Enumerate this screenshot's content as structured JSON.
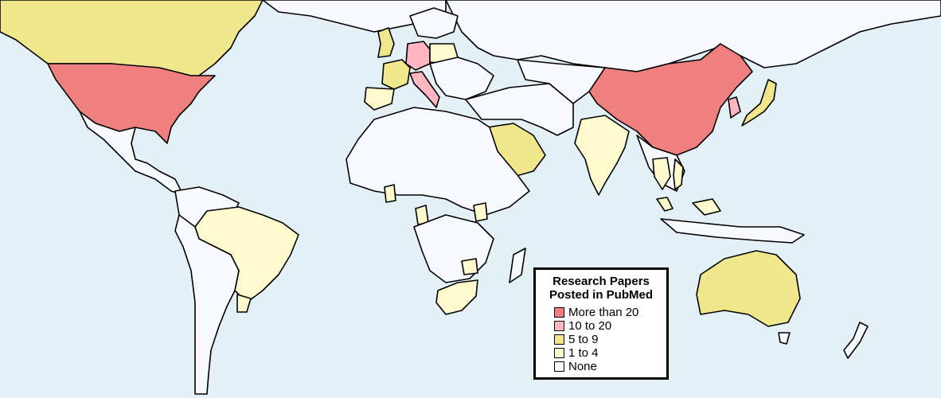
{
  "legend": {
    "title_line1": "Research Papers",
    "title_line2": "Posted in PubMed",
    "items": [
      {
        "label": "More than 20",
        "color": "#f08080"
      },
      {
        "label": "10 to 20",
        "color": "#ffb6c1"
      },
      {
        "label": "5 to 9",
        "color": "#f0e68c"
      },
      {
        "label": "1 to 4",
        "color": "#fffacd"
      },
      {
        "label": "None",
        "color": "#f8f8ff"
      }
    ]
  },
  "map": {
    "ocean_color": "#e3f1f7",
    "border_color": "#000000",
    "countries": [
      {
        "id": "usa",
        "category": "More than 20"
      },
      {
        "id": "china",
        "category": "More than 20"
      },
      {
        "id": "germany",
        "category": "10 to 20"
      },
      {
        "id": "italy",
        "category": "10 to 20"
      },
      {
        "id": "south-korea",
        "category": "10 to 20"
      },
      {
        "id": "canada",
        "category": "5 to 9"
      },
      {
        "id": "united-kingdom",
        "category": "5 to 9"
      },
      {
        "id": "france",
        "category": "5 to 9"
      },
      {
        "id": "saudi-arabia",
        "category": "5 to 9"
      },
      {
        "id": "australia",
        "category": "5 to 9"
      },
      {
        "id": "japan",
        "category": "5 to 9"
      },
      {
        "id": "brazil",
        "category": "1 to 4"
      },
      {
        "id": "india",
        "category": "1 to 4"
      },
      {
        "id": "spain",
        "category": "1 to 4"
      },
      {
        "id": "poland",
        "category": "1 to 4"
      },
      {
        "id": "south-africa",
        "category": "1 to 4"
      },
      {
        "id": "uruguay",
        "category": "1 to 4"
      },
      {
        "id": "malaysia",
        "category": "1 to 4"
      },
      {
        "id": "thailand",
        "category": "1 to 4"
      },
      {
        "id": "ghana",
        "category": "1 to 4"
      },
      {
        "id": "kenya",
        "category": "1 to 4"
      },
      {
        "id": "zimbabwe",
        "category": "1 to 4"
      },
      {
        "id": "cameroon",
        "category": "1 to 4"
      },
      {
        "id": "vietnam",
        "category": "1 to 4"
      },
      {
        "id": "indonesia",
        "category": "1 to 4"
      }
    ]
  }
}
